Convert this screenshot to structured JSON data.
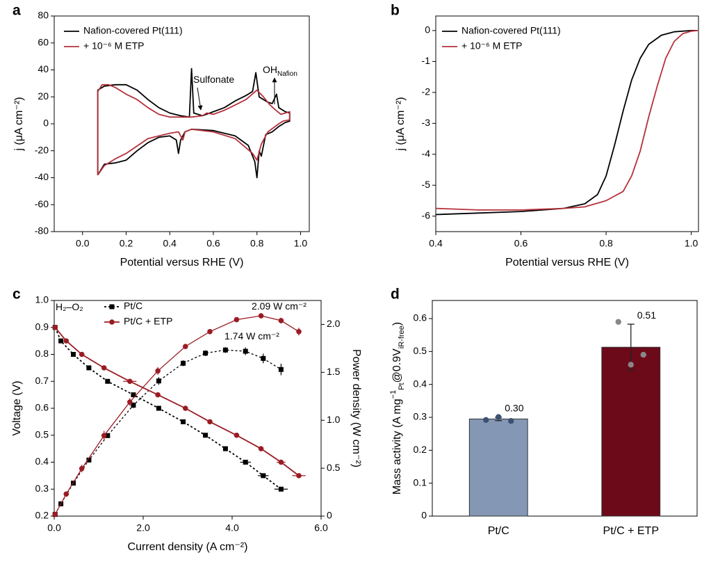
{
  "chart_data": [
    {
      "type": "line",
      "panel": "a",
      "xlabel": "Potential versus RHE (V)",
      "ylabel": "j (μA cm⁻²)",
      "xlim": [
        -0.13,
        1.04
      ],
      "ylim": [
        -80,
        80
      ],
      "xticks": [
        {
          "value": 0,
          "label": "0.0"
        },
        0.2,
        0.4,
        0.6,
        0.8,
        {
          "value": 1,
          "label": "1.0"
        }
      ],
      "yticks": [
        80,
        60,
        40,
        20,
        0,
        -20,
        -40,
        -60,
        -80
      ],
      "legend": "upper left",
      "annotations": [
        {
          "text": "Sulfonate"
        },
        {
          "text": "OH",
          "sub": "Nafion"
        }
      ],
      "series": [
        {
          "name": "Nafion-covered Pt(111)",
          "color": "#000000",
          "x": [
            0.07,
            0.07,
            0.1,
            0.15,
            0.2,
            0.25,
            0.3,
            0.35,
            0.4,
            0.45,
            0.49,
            0.5,
            0.51,
            0.55,
            0.6,
            0.65,
            0.7,
            0.75,
            0.78,
            0.795,
            0.81,
            0.85,
            0.87,
            0.89,
            0.9,
            0.93,
            0.95,
            0.95,
            0.93,
            0.9,
            0.87,
            0.84,
            0.82,
            0.81,
            0.8,
            0.79,
            0.76,
            0.7,
            0.6,
            0.5,
            0.47,
            0.45,
            0.44,
            0.43,
            0.4,
            0.35,
            0.3,
            0.25,
            0.2,
            0.15,
            0.1,
            0.07
          ],
          "values": [
            -38,
            25,
            28,
            29,
            29,
            25,
            18,
            12,
            8,
            6,
            5,
            41,
            8,
            6,
            9,
            12,
            17,
            21,
            24,
            38,
            20,
            16,
            15,
            22,
            12,
            9,
            8,
            2,
            1,
            -2,
            -6,
            -8,
            -24,
            -20,
            -40,
            -28,
            -16,
            -9,
            -5,
            -4,
            -6,
            -12,
            -22,
            -12,
            -9,
            -10,
            -14,
            -20,
            -27,
            -29,
            -30,
            -38
          ]
        },
        {
          "name": "+ 10⁻⁶ M ETP",
          "color": "#b5303b",
          "x": [
            0.07,
            0.07,
            0.09,
            0.12,
            0.15,
            0.2,
            0.25,
            0.3,
            0.35,
            0.4,
            0.45,
            0.5,
            0.55,
            0.57,
            0.6,
            0.65,
            0.7,
            0.75,
            0.8,
            0.83,
            0.86,
            0.88,
            0.91,
            0.95,
            0.95,
            0.92,
            0.9,
            0.85,
            0.82,
            0.8,
            0.78,
            0.7,
            0.6,
            0.5,
            0.47,
            0.46,
            0.44,
            0.4,
            0.3,
            0.2,
            0.15,
            0.1,
            0.07
          ],
          "values": [
            -38,
            24,
            29,
            29,
            27,
            22,
            18,
            12,
            7,
            5,
            5,
            5,
            6,
            8,
            7,
            10,
            14,
            18,
            25,
            20,
            14,
            11,
            7,
            9,
            3,
            2,
            0,
            -6,
            -15,
            -27,
            -22,
            -11,
            -6,
            -4,
            -6,
            -12,
            -6,
            -7,
            -11,
            -22,
            -26,
            -31,
            -38
          ]
        }
      ]
    },
    {
      "type": "line",
      "panel": "b",
      "xlabel": "Potential versus RHE (V)",
      "ylabel": "j (μA cm⁻²)",
      "xlim": [
        0.4,
        1.017
      ],
      "ylim": [
        -6.5,
        0.47
      ],
      "xticks": [
        0.4,
        0.6,
        0.8,
        {
          "value": 1,
          "label": "1.0"
        }
      ],
      "yticks": [
        0,
        -1,
        -2,
        -3,
        -4,
        -5,
        -6
      ],
      "legend": "upper left",
      "series": [
        {
          "name": "Nafion-covered Pt(111)",
          "color": "#000000",
          "x": [
            0.4,
            0.5,
            0.6,
            0.7,
            0.75,
            0.78,
            0.8,
            0.82,
            0.84,
            0.86,
            0.88,
            0.9,
            0.93,
            0.96,
            1.0,
            1.015
          ],
          "values": [
            -5.95,
            -5.9,
            -5.85,
            -5.75,
            -5.6,
            -5.3,
            -4.7,
            -3.7,
            -2.6,
            -1.6,
            -0.9,
            -0.45,
            -0.15,
            -0.04,
            0,
            0
          ]
        },
        {
          "name": "+ 10⁻⁶ M ETP",
          "color": "#b5303b",
          "x": [
            0.4,
            0.5,
            0.6,
            0.7,
            0.75,
            0.8,
            0.84,
            0.86,
            0.88,
            0.9,
            0.92,
            0.94,
            0.96,
            0.98,
            1.0,
            1.015
          ],
          "values": [
            -5.75,
            -5.8,
            -5.8,
            -5.75,
            -5.7,
            -5.5,
            -5.2,
            -4.7,
            -3.9,
            -2.8,
            -1.8,
            -0.9,
            -0.35,
            -0.1,
            -0.02,
            0
          ]
        }
      ]
    },
    {
      "type": "line",
      "panel": "c",
      "xlabel": "Current density (A cm⁻²)",
      "ylabel": "Voltage (V)",
      "y2label": "Power density (W cm⁻²)",
      "xlim": [
        0,
        6
      ],
      "ylim": [
        0.2,
        1.0
      ],
      "y2lim": [
        0,
        2.25
      ],
      "xticks": [
        {
          "value": 0,
          "label": "0.0"
        },
        {
          "value": 2,
          "label": "2.0"
        },
        {
          "value": 4,
          "label": "4.0"
        },
        {
          "value": 6,
          "label": "6.0"
        }
      ],
      "yticks": [
        0.2,
        0.3,
        0.4,
        0.5,
        0.6,
        0.7,
        0.8,
        0.9,
        {
          "value": 1,
          "label": "1.0"
        }
      ],
      "y2ticks": [
        0,
        0.5,
        {
          "value": 1,
          "label": "1.0"
        },
        1.5,
        {
          "value": 2,
          "label": "2.0"
        }
      ],
      "legend": "upper left",
      "annotations": [
        {
          "text": "H₂–O₂"
        },
        {
          "text": "2.09 W cm⁻²",
          "color": "#9b1b23"
        },
        {
          "text": "1.74 W cm⁻²"
        }
      ],
      "series": [
        {
          "name": "Pt/C",
          "color": "#000000",
          "marker": "square",
          "dash": true,
          "x": [
            0.02,
            0.15,
            0.43,
            0.78,
            1.2,
            1.78,
            2.35,
            2.9,
            3.4,
            3.85,
            4.3,
            4.7,
            5.1
          ],
          "values": [
            0.9,
            0.85,
            0.8,
            0.75,
            0.7,
            0.65,
            0.6,
            0.55,
            0.5,
            0.45,
            0.4,
            0.35,
            0.3
          ],
          "xerr": [
            0,
            0,
            0,
            0,
            0,
            0,
            0,
            0,
            0,
            0,
            0.12,
            0.12,
            0.15
          ],
          "y2values": [
            0.018,
            0.128,
            0.344,
            0.585,
            0.84,
            1.157,
            1.41,
            1.595,
            1.7,
            1.733,
            1.72,
            1.645,
            1.53
          ],
          "y2err": [
            0,
            0,
            0,
            0,
            0,
            0.03,
            0.04,
            0.03,
            0.03,
            0.03,
            0.04,
            0.05,
            0.06
          ]
        },
        {
          "name": "Pt/C + ETP",
          "color": "#9b1b23",
          "marker": "circle",
          "dash": false,
          "x": [
            0.02,
            0.27,
            0.62,
            1.12,
            1.7,
            2.33,
            2.95,
            3.5,
            4.1,
            4.65,
            5.1,
            5.5
          ],
          "values": [
            0.9,
            0.85,
            0.8,
            0.75,
            0.7,
            0.65,
            0.6,
            0.55,
            0.5,
            0.45,
            0.4,
            0.35
          ],
          "xerr": [
            0,
            0,
            0,
            0,
            0.15,
            0,
            0,
            0,
            0,
            0,
            0.1,
            0.15
          ],
          "y2values": [
            0.018,
            0.23,
            0.496,
            0.84,
            1.19,
            1.515,
            1.77,
            1.925,
            2.05,
            2.09,
            2.04,
            1.925
          ],
          "y2err": [
            0,
            0,
            0.04,
            0.05,
            0.04,
            0.04,
            0.02,
            0.02,
            0.02,
            0.02,
            0.03,
            0.04
          ]
        }
      ]
    },
    {
      "type": "bar",
      "panel": "d",
      "ylabel": [
        {
          "text": "Mass activity (A mg"
        },
        {
          "text": "−1",
          "shift": "super"
        },
        {
          "text": "Pt",
          "shift": "sub"
        },
        {
          "text": "@0.9V"
        },
        {
          "text": "iR-free",
          "shift": "sub"
        },
        {
          "text": ")"
        }
      ],
      "categories": [
        "Pt/C",
        "Pt/C + ETP"
      ],
      "values": [
        0.295,
        0.513
      ],
      "value_labels": [
        "0.30",
        "0.51"
      ],
      "errors": [
        0.005,
        0.07
      ],
      "colors": [
        "#8497b4",
        "#6c0a1a"
      ],
      "points": [
        [
          0.292,
          0.301,
          0.289
        ],
        [
          0.59,
          0.46,
          0.49
        ]
      ],
      "point_colors": [
        "#3d5170",
        "#888888"
      ],
      "ylim": [
        0,
        0.655
      ],
      "yticks": [
        0,
        0.1,
        0.2,
        0.3,
        0.4,
        0.5,
        0.6
      ]
    }
  ]
}
